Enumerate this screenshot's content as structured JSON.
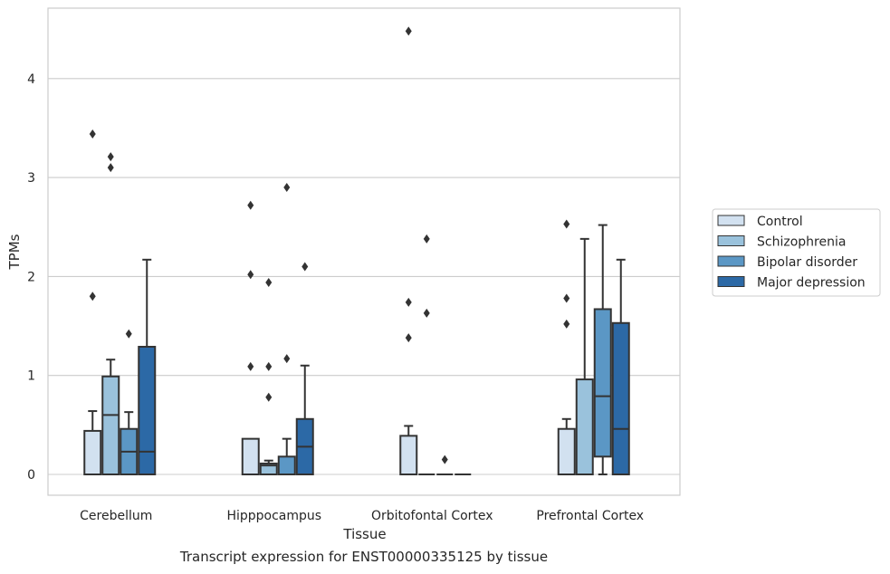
{
  "chart_data": {
    "type": "box",
    "caption": "Transcript expression for ENST00000335125 by tissue",
    "xlabel": "Tissue",
    "ylabel": "TPMs",
    "ylim": [
      -0.22,
      4.7
    ],
    "yticks": [
      0,
      1,
      2,
      3,
      4
    ],
    "grid": true,
    "legend_position": "right",
    "categories": [
      "Cerebellum",
      "Hipppocampus",
      "Orbitofontal Cortex",
      "Prefrontal Cortex"
    ],
    "series": [
      {
        "name": "Control",
        "color": "#d2e1f0",
        "boxes": [
          {
            "whislo": 0,
            "q1": 0,
            "med": 0,
            "q3": 0.44,
            "whishi": 0.64,
            "fliers": [
              1.8,
              3.44
            ]
          },
          {
            "whislo": 0,
            "q1": 0,
            "med": 0,
            "q3": 0.36,
            "whishi": 0.36,
            "fliers": [
              1.09,
              2.02,
              2.72
            ]
          },
          {
            "whislo": 0,
            "q1": 0,
            "med": 0,
            "q3": 0.39,
            "whishi": 0.49,
            "fliers": [
              1.38,
              1.74,
              4.48
            ]
          },
          {
            "whislo": 0,
            "q1": 0,
            "med": 0,
            "q3": 0.46,
            "whishi": 0.56,
            "fliers": [
              1.52,
              1.78,
              2.53
            ]
          }
        ]
      },
      {
        "name": "Schizophrenia",
        "color": "#9ac2dc",
        "boxes": [
          {
            "whislo": 0,
            "q1": 0,
            "med": 0.6,
            "q3": 0.99,
            "whishi": 1.16,
            "fliers": [
              3.1,
              3.21
            ]
          },
          {
            "whislo": 0,
            "q1": 0,
            "med": 0.09,
            "q3": 0.11,
            "whishi": 0.14,
            "fliers": [
              0.78,
              1.09,
              1.94
            ]
          },
          {
            "whislo": 0,
            "q1": 0,
            "med": 0,
            "q3": 0,
            "whishi": 0,
            "fliers": [
              1.63,
              2.38
            ]
          },
          {
            "whislo": 0,
            "q1": 0,
            "med": 0,
            "q3": 0.96,
            "whishi": 2.38,
            "fliers": []
          }
        ]
      },
      {
        "name": "Bipolar disorder",
        "color": "#5b97c5",
        "boxes": [
          {
            "whislo": 0,
            "q1": 0,
            "med": 0.23,
            "q3": 0.46,
            "whishi": 0.63,
            "fliers": [
              1.42
            ]
          },
          {
            "whislo": 0,
            "q1": 0,
            "med": 0,
            "q3": 0.18,
            "whishi": 0.36,
            "fliers": [
              1.17,
              2.9
            ]
          },
          {
            "whislo": 0,
            "q1": 0,
            "med": 0,
            "q3": 0,
            "whishi": 0,
            "fliers": [
              0.15
            ]
          },
          {
            "whislo": 0,
            "q1": 0.18,
            "med": 0.79,
            "q3": 1.67,
            "whishi": 2.52,
            "fliers": []
          }
        ]
      },
      {
        "name": "Major depression",
        "color": "#2c69a6",
        "boxes": [
          {
            "whislo": 0,
            "q1": 0,
            "med": 0.23,
            "q3": 1.29,
            "whishi": 2.17,
            "fliers": []
          },
          {
            "whislo": 0,
            "q1": 0,
            "med": 0.28,
            "q3": 0.56,
            "whishi": 1.1,
            "fliers": [
              2.1
            ]
          },
          {
            "whislo": 0,
            "q1": 0,
            "med": 0,
            "q3": 0,
            "whishi": 0,
            "fliers": []
          },
          {
            "whislo": 0,
            "q1": 0,
            "med": 0.46,
            "q3": 1.53,
            "whishi": 2.17,
            "fliers": []
          }
        ]
      }
    ]
  }
}
